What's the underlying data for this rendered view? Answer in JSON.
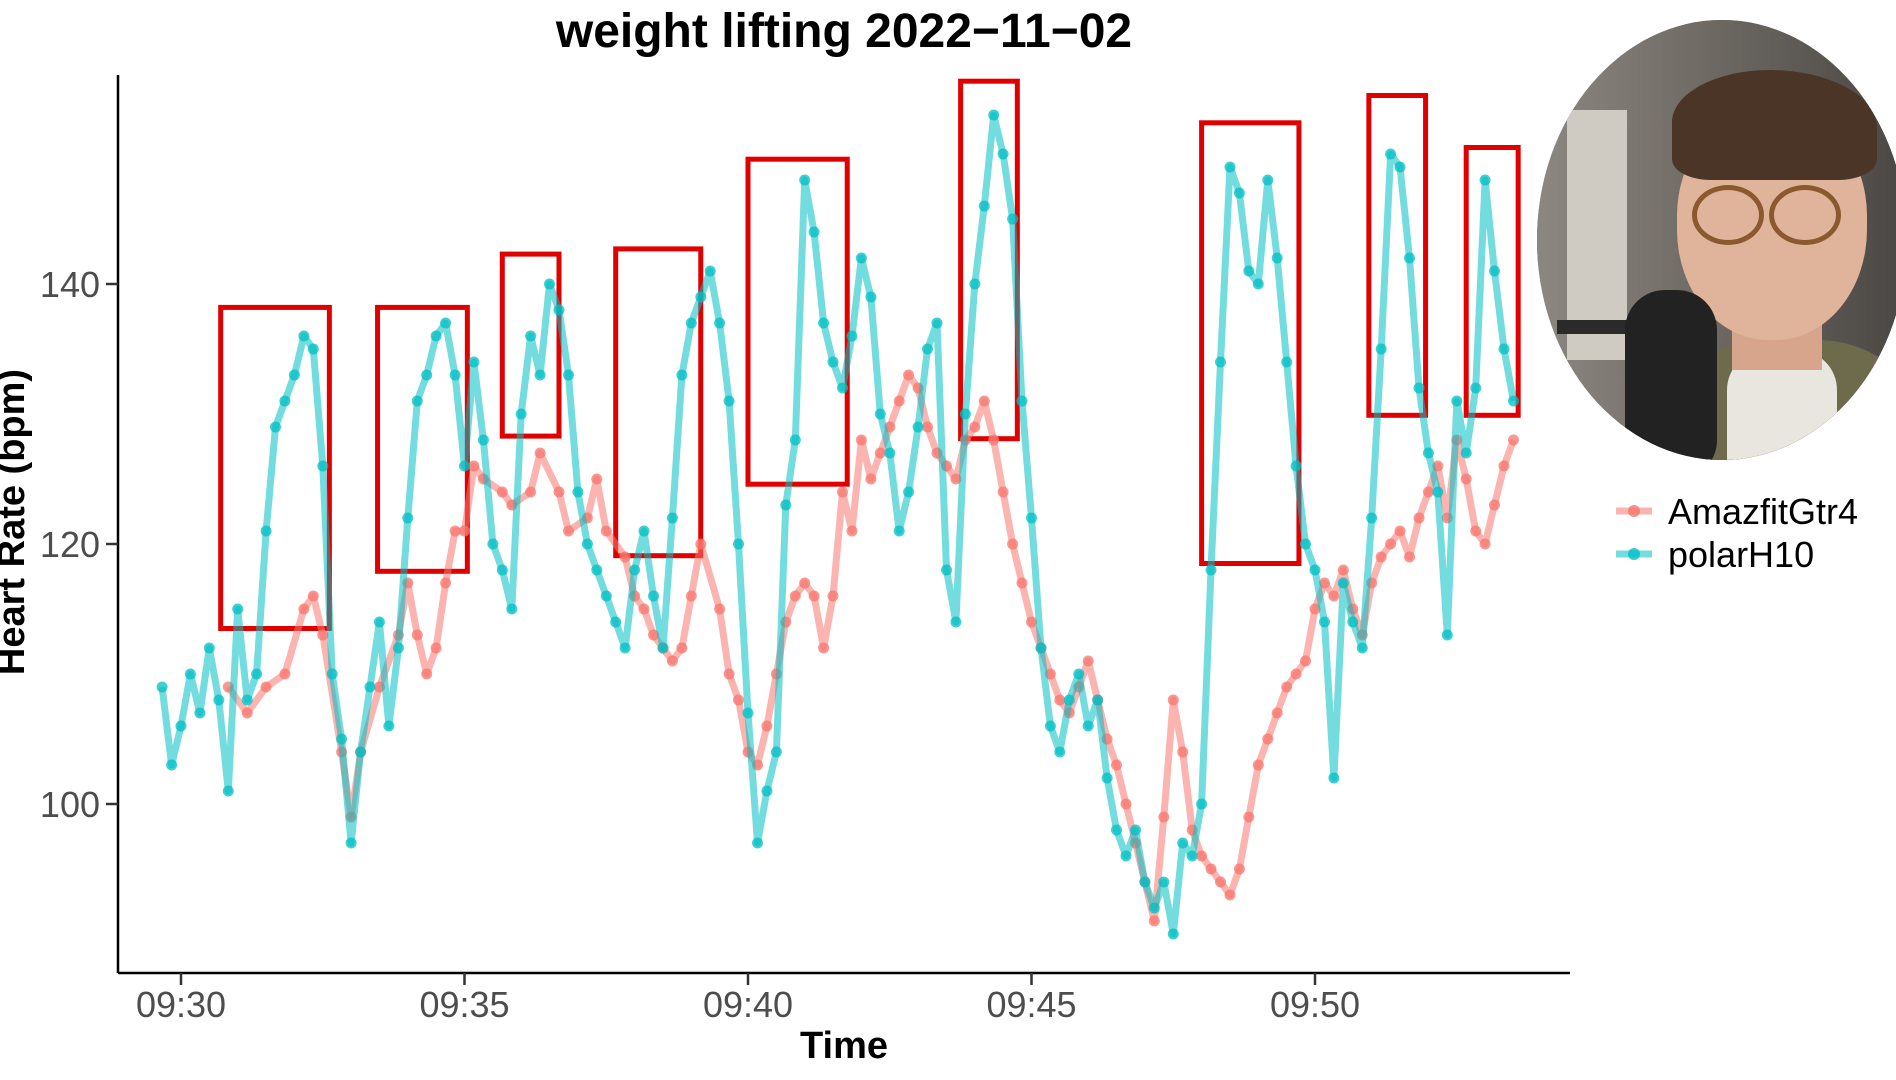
{
  "chart_data": {
    "type": "line",
    "title": "weight lifting 2022−11−02",
    "xlabel": "Time",
    "ylabel": "Heart Rate (bpm)",
    "x_ticks": [
      "09:30",
      "09:35",
      "09:40",
      "09:45",
      "09:50"
    ],
    "y_ticks": [
      100,
      120,
      140
    ],
    "xlim": [
      "09:29:20",
      "09:54:40"
    ],
    "ylim": [
      88,
      158
    ],
    "grid": false,
    "legend_position": "right",
    "series": [
      {
        "name": "AmazfitGtr4",
        "color": "#F8766D",
        "points": [
          [
            "09:30:50",
            109
          ],
          [
            "09:31:10",
            107
          ],
          [
            "09:31:30",
            109
          ],
          [
            "09:31:50",
            110
          ],
          [
            "09:32:10",
            115
          ],
          [
            "09:32:20",
            116
          ],
          [
            "09:32:30",
            113
          ],
          [
            "09:32:50",
            104
          ],
          [
            "09:33:00",
            99
          ],
          [
            "09:33:10",
            104
          ],
          [
            "09:33:30",
            109
          ],
          [
            "09:33:50",
            113
          ],
          [
            "09:34:00",
            117
          ],
          [
            "09:34:10",
            113
          ],
          [
            "09:34:20",
            110
          ],
          [
            "09:34:30",
            112
          ],
          [
            "09:34:40",
            117
          ],
          [
            "09:34:50",
            121
          ],
          [
            "09:35:00",
            121
          ],
          [
            "09:35:10",
            126
          ],
          [
            "09:35:20",
            125
          ],
          [
            "09:35:40",
            124
          ],
          [
            "09:35:50",
            123
          ],
          [
            "09:36:10",
            124
          ],
          [
            "09:36:20",
            127
          ],
          [
            "09:36:40",
            124
          ],
          [
            "09:36:50",
            121
          ],
          [
            "09:37:10",
            122
          ],
          [
            "09:37:20",
            125
          ],
          [
            "09:37:30",
            121
          ],
          [
            "09:37:50",
            119
          ],
          [
            "09:38:00",
            116
          ],
          [
            "09:38:10",
            115
          ],
          [
            "09:38:20",
            113
          ],
          [
            "09:38:30",
            112
          ],
          [
            "09:38:40",
            111
          ],
          [
            "09:38:50",
            112
          ],
          [
            "09:39:00",
            116
          ],
          [
            "09:39:10",
            120
          ],
          [
            "09:39:30",
            115
          ],
          [
            "09:39:40",
            110
          ],
          [
            "09:39:50",
            108
          ],
          [
            "09:40:00",
            104
          ],
          [
            "09:40:10",
            103
          ],
          [
            "09:40:20",
            106
          ],
          [
            "09:40:30",
            110
          ],
          [
            "09:40:40",
            114
          ],
          [
            "09:40:50",
            116
          ],
          [
            "09:41:00",
            117
          ],
          [
            "09:41:10",
            116
          ],
          [
            "09:41:20",
            112
          ],
          [
            "09:41:30",
            116
          ],
          [
            "09:41:40",
            124
          ],
          [
            "09:41:50",
            121
          ],
          [
            "09:42:00",
            128
          ],
          [
            "09:42:10",
            125
          ],
          [
            "09:42:20",
            127
          ],
          [
            "09:42:30",
            129
          ],
          [
            "09:42:40",
            131
          ],
          [
            "09:42:50",
            133
          ],
          [
            "09:43:00",
            132
          ],
          [
            "09:43:10",
            129
          ],
          [
            "09:43:20",
            127
          ],
          [
            "09:43:30",
            126
          ],
          [
            "09:43:40",
            125
          ],
          [
            "09:43:50",
            128
          ],
          [
            "09:44:00",
            129
          ],
          [
            "09:44:10",
            131
          ],
          [
            "09:44:20",
            128
          ],
          [
            "09:44:30",
            124
          ],
          [
            "09:44:40",
            120
          ],
          [
            "09:44:50",
            117
          ],
          [
            "09:45:00",
            114
          ],
          [
            "09:45:10",
            112
          ],
          [
            "09:45:20",
            110
          ],
          [
            "09:45:30",
            108
          ],
          [
            "09:45:40",
            107
          ],
          [
            "09:45:50",
            109
          ],
          [
            "09:46:00",
            111
          ],
          [
            "09:46:10",
            108
          ],
          [
            "09:46:20",
            105
          ],
          [
            "09:46:30",
            103
          ],
          [
            "09:46:40",
            100
          ],
          [
            "09:46:50",
            97
          ],
          [
            "09:47:00",
            94
          ],
          [
            "09:47:10",
            91
          ],
          [
            "09:47:20",
            99
          ],
          [
            "09:47:30",
            108
          ],
          [
            "09:47:40",
            104
          ],
          [
            "09:47:50",
            98
          ],
          [
            "09:48:00",
            96
          ],
          [
            "09:48:10",
            95
          ],
          [
            "09:48:20",
            94
          ],
          [
            "09:48:30",
            93
          ],
          [
            "09:48:40",
            95
          ],
          [
            "09:48:50",
            99
          ],
          [
            "09:49:00",
            103
          ],
          [
            "09:49:10",
            105
          ],
          [
            "09:49:20",
            107
          ],
          [
            "09:49:30",
            109
          ],
          [
            "09:49:40",
            110
          ],
          [
            "09:49:50",
            111
          ],
          [
            "09:50:00",
            115
          ],
          [
            "09:50:10",
            117
          ],
          [
            "09:50:20",
            116
          ],
          [
            "09:50:30",
            118
          ],
          [
            "09:50:40",
            115
          ],
          [
            "09:50:50",
            113
          ],
          [
            "09:51:00",
            117
          ],
          [
            "09:51:10",
            119
          ],
          [
            "09:51:20",
            120
          ],
          [
            "09:51:30",
            121
          ],
          [
            "09:51:40",
            119
          ],
          [
            "09:51:50",
            122
          ],
          [
            "09:52:00",
            124
          ],
          [
            "09:52:10",
            126
          ],
          [
            "09:52:20",
            122
          ],
          [
            "09:52:30",
            128
          ],
          [
            "09:52:40",
            125
          ],
          [
            "09:52:50",
            121
          ],
          [
            "09:53:00",
            120
          ],
          [
            "09:53:10",
            123
          ],
          [
            "09:53:20",
            126
          ],
          [
            "09:53:30",
            128
          ]
        ]
      },
      {
        "name": "polarH10",
        "color": "#00BFC4",
        "points": [
          [
            "09:29:40",
            109
          ],
          [
            "09:29:50",
            103
          ],
          [
            "09:30:00",
            106
          ],
          [
            "09:30:10",
            110
          ],
          [
            "09:30:20",
            107
          ],
          [
            "09:30:30",
            112
          ],
          [
            "09:30:40",
            108
          ],
          [
            "09:30:50",
            101
          ],
          [
            "09:31:00",
            115
          ],
          [
            "09:31:10",
            108
          ],
          [
            "09:31:20",
            110
          ],
          [
            "09:31:30",
            121
          ],
          [
            "09:31:40",
            129
          ],
          [
            "09:31:50",
            131
          ],
          [
            "09:32:00",
            133
          ],
          [
            "09:32:10",
            136
          ],
          [
            "09:32:20",
            135
          ],
          [
            "09:32:30",
            126
          ],
          [
            "09:32:40",
            110
          ],
          [
            "09:32:50",
            105
          ],
          [
            "09:33:00",
            97
          ],
          [
            "09:33:10",
            104
          ],
          [
            "09:33:20",
            109
          ],
          [
            "09:33:30",
            114
          ],
          [
            "09:33:40",
            106
          ],
          [
            "09:33:50",
            112
          ],
          [
            "09:34:00",
            122
          ],
          [
            "09:34:10",
            131
          ],
          [
            "09:34:20",
            133
          ],
          [
            "09:34:30",
            136
          ],
          [
            "09:34:40",
            137
          ],
          [
            "09:34:50",
            133
          ],
          [
            "09:35:00",
            126
          ],
          [
            "09:35:10",
            134
          ],
          [
            "09:35:20",
            128
          ],
          [
            "09:35:30",
            120
          ],
          [
            "09:35:40",
            118
          ],
          [
            "09:35:50",
            115
          ],
          [
            "09:36:00",
            130
          ],
          [
            "09:36:10",
            136
          ],
          [
            "09:36:20",
            133
          ],
          [
            "09:36:30",
            140
          ],
          [
            "09:36:40",
            138
          ],
          [
            "09:36:50",
            133
          ],
          [
            "09:37:00",
            124
          ],
          [
            "09:37:10",
            120
          ],
          [
            "09:37:20",
            118
          ],
          [
            "09:37:30",
            116
          ],
          [
            "09:37:40",
            114
          ],
          [
            "09:37:50",
            112
          ],
          [
            "09:38:00",
            118
          ],
          [
            "09:38:10",
            121
          ],
          [
            "09:38:20",
            116
          ],
          [
            "09:38:30",
            112
          ],
          [
            "09:38:40",
            122
          ],
          [
            "09:38:50",
            133
          ],
          [
            "09:39:00",
            137
          ],
          [
            "09:39:10",
            139
          ],
          [
            "09:39:20",
            141
          ],
          [
            "09:39:30",
            137
          ],
          [
            "09:39:40",
            131
          ],
          [
            "09:39:50",
            120
          ],
          [
            "09:40:00",
            107
          ],
          [
            "09:40:10",
            97
          ],
          [
            "09:40:20",
            101
          ],
          [
            "09:40:30",
            104
          ],
          [
            "09:40:40",
            123
          ],
          [
            "09:40:50",
            128
          ],
          [
            "09:41:00",
            148
          ],
          [
            "09:41:10",
            144
          ],
          [
            "09:41:20",
            137
          ],
          [
            "09:41:30",
            134
          ],
          [
            "09:41:40",
            132
          ],
          [
            "09:41:50",
            136
          ],
          [
            "09:42:00",
            142
          ],
          [
            "09:42:10",
            139
          ],
          [
            "09:42:20",
            130
          ],
          [
            "09:42:30",
            127
          ],
          [
            "09:42:40",
            121
          ],
          [
            "09:42:50",
            124
          ],
          [
            "09:43:00",
            129
          ],
          [
            "09:43:10",
            135
          ],
          [
            "09:43:20",
            137
          ],
          [
            "09:43:30",
            118
          ],
          [
            "09:43:40",
            114
          ],
          [
            "09:43:50",
            130
          ],
          [
            "09:44:00",
            140
          ],
          [
            "09:44:10",
            146
          ],
          [
            "09:44:20",
            153
          ],
          [
            "09:44:30",
            150
          ],
          [
            "09:44:40",
            145
          ],
          [
            "09:44:50",
            131
          ],
          [
            "09:45:00",
            122
          ],
          [
            "09:45:10",
            112
          ],
          [
            "09:45:20",
            106
          ],
          [
            "09:45:30",
            104
          ],
          [
            "09:45:40",
            108
          ],
          [
            "09:45:50",
            110
          ],
          [
            "09:46:00",
            106
          ],
          [
            "09:46:10",
            108
          ],
          [
            "09:46:20",
            102
          ],
          [
            "09:46:30",
            98
          ],
          [
            "09:46:40",
            96
          ],
          [
            "09:46:50",
            98
          ],
          [
            "09:47:00",
            94
          ],
          [
            "09:47:10",
            92
          ],
          [
            "09:47:20",
            94
          ],
          [
            "09:47:30",
            90
          ],
          [
            "09:47:40",
            97
          ],
          [
            "09:47:50",
            96
          ],
          [
            "09:48:00",
            100
          ],
          [
            "09:48:10",
            118
          ],
          [
            "09:48:20",
            134
          ],
          [
            "09:48:30",
            149
          ],
          [
            "09:48:40",
            147
          ],
          [
            "09:48:50",
            141
          ],
          [
            "09:49:00",
            140
          ],
          [
            "09:49:10",
            148
          ],
          [
            "09:49:20",
            142
          ],
          [
            "09:49:30",
            134
          ],
          [
            "09:49:40",
            126
          ],
          [
            "09:49:50",
            120
          ],
          [
            "09:50:00",
            118
          ],
          [
            "09:50:10",
            114
          ],
          [
            "09:50:20",
            102
          ],
          [
            "09:50:30",
            117
          ],
          [
            "09:50:40",
            114
          ],
          [
            "09:50:50",
            112
          ],
          [
            "09:51:00",
            122
          ],
          [
            "09:51:10",
            135
          ],
          [
            "09:51:20",
            150
          ],
          [
            "09:51:30",
            149
          ],
          [
            "09:51:40",
            142
          ],
          [
            "09:51:50",
            132
          ],
          [
            "09:52:00",
            127
          ],
          [
            "09:52:10",
            124
          ],
          [
            "09:52:20",
            113
          ],
          [
            "09:52:30",
            131
          ],
          [
            "09:52:40",
            127
          ],
          [
            "09:52:50",
            132
          ],
          [
            "09:53:00",
            148
          ],
          [
            "09:53:10",
            141
          ],
          [
            "09:53:20",
            135
          ],
          [
            "09:53:30",
            131
          ]
        ]
      }
    ],
    "highlight_boxes": [
      {
        "x0": "09:30:42",
        "x1": "09:32:37",
        "y0": 113.5,
        "y1": 138.2
      },
      {
        "x0": "09:33:28",
        "x1": "09:35:03",
        "y0": 117.9,
        "y1": 138.2
      },
      {
        "x0": "09:35:40",
        "x1": "09:36:40",
        "y0": 128.3,
        "y1": 142.3
      },
      {
        "x0": "09:37:40",
        "x1": "09:39:10",
        "y0": 119.1,
        "y1": 142.7
      },
      {
        "x0": "09:40:00",
        "x1": "09:41:45",
        "y0": 124.6,
        "y1": 149.6
      },
      {
        "x0": "09:43:45",
        "x1": "09:44:45",
        "y0": 128.1,
        "y1": 155.6
      },
      {
        "x0": "09:48:00",
        "x1": "09:49:43",
        "y0": 118.5,
        "y1": 152.4
      },
      {
        "x0": "09:50:57",
        "x1": "09:51:57",
        "y0": 129.9,
        "y1": 154.5
      },
      {
        "x0": "09:52:40",
        "x1": "09:53:35",
        "y0": 129.9,
        "y1": 150.5
      }
    ],
    "highlight_color": "#E00000"
  }
}
